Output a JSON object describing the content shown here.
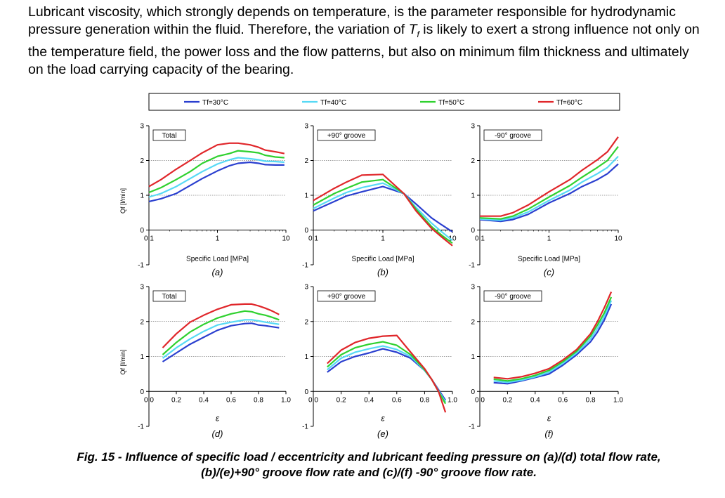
{
  "paragraph": {
    "part1": "Lubricant viscosity, which strongly depends on temperature, is the parameter responsible for hydrodynamic pressure generation within the fluid. Therefore, the variation of ",
    "symbol": "T",
    "subscript": "f",
    "part2": " is likely to exert a strong influence not only on the temperature field, the power loss and the flow patterns, but also on minimum film thickness and ultimately on the load carrying capacity of the bearing."
  },
  "legend": [
    {
      "label": "Tf=30°C",
      "color": "#2a3fcf"
    },
    {
      "label": "Tf=40°C",
      "color": "#56d9f5"
    },
    {
      "label": "Tf=50°C",
      "color": "#2fd12f"
    },
    {
      "label": "Tf=60°C",
      "color": "#e0262a"
    }
  ],
  "caption": {
    "line1": "Fig. 15 - Influence of specific load / eccentricity and lubricant feeding pressure on (a)/(d) total flow rate,",
    "line2": "(b)/(e)+90° groove flow rate and (c)/(f) -90° groove flow rate."
  },
  "chart_data": [
    {
      "panel": "(a)",
      "type": "line",
      "title": "Total",
      "xlabel": "Specific Load [MPa]",
      "ylabel": "Qf [l/min]",
      "xscale": "log",
      "xlim": [
        0.1,
        10
      ],
      "ylim": [
        -1,
        3
      ],
      "xticks": [
        "0.1",
        "1",
        "10"
      ],
      "yticks": [
        "-1",
        "0",
        "1",
        "2",
        "3"
      ],
      "x": [
        0.1,
        0.15,
        0.25,
        0.4,
        0.6,
        1,
        1.5,
        2,
        3,
        4,
        5,
        7,
        9.5
      ],
      "series": [
        {
          "name": "Tf=30°C",
          "values": [
            0.82,
            0.9,
            1.05,
            1.28,
            1.48,
            1.7,
            1.85,
            1.92,
            1.95,
            1.92,
            1.88,
            1.87,
            1.87
          ]
        },
        {
          "name": "Tf=40°C",
          "values": [
            0.95,
            1.05,
            1.25,
            1.48,
            1.68,
            1.9,
            2.02,
            2.08,
            2.05,
            2.02,
            1.98,
            1.97,
            1.95
          ]
        },
        {
          "name": "Tf=50°C",
          "values": [
            1.08,
            1.22,
            1.45,
            1.68,
            1.92,
            2.12,
            2.2,
            2.28,
            2.25,
            2.22,
            2.15,
            2.1,
            2.08
          ]
        },
        {
          "name": "Tf=60°C",
          "values": [
            1.25,
            1.45,
            1.75,
            2.0,
            2.22,
            2.45,
            2.5,
            2.5,
            2.45,
            2.38,
            2.3,
            2.25,
            2.2
          ]
        }
      ]
    },
    {
      "panel": "(b)",
      "type": "line",
      "title": "+90° groove",
      "xlabel": "Specific Load [MPa]",
      "ylabel": "",
      "xscale": "log",
      "xlim": [
        0.1,
        10
      ],
      "ylim": [
        -1,
        3
      ],
      "xticks": [
        "0.1",
        "1",
        "10"
      ],
      "yticks": [
        "-1",
        "0",
        "1",
        "2",
        "3"
      ],
      "x": [
        0.1,
        0.2,
        0.3,
        0.5,
        1,
        2,
        3,
        5,
        7,
        10
      ],
      "series": [
        {
          "name": "Tf=30°C",
          "values": [
            0.55,
            0.82,
            0.98,
            1.1,
            1.25,
            1.05,
            0.75,
            0.35,
            0.15,
            -0.05
          ]
        },
        {
          "name": "Tf=40°C",
          "values": [
            0.62,
            0.92,
            1.08,
            1.22,
            1.35,
            1.05,
            0.65,
            0.2,
            -0.05,
            -0.3
          ]
        },
        {
          "name": "Tf=50°C",
          "values": [
            0.72,
            1.05,
            1.2,
            1.38,
            1.45,
            1.05,
            0.6,
            0.1,
            -0.15,
            -0.38
          ]
        },
        {
          "name": "Tf=60°C",
          "values": [
            0.85,
            1.2,
            1.38,
            1.58,
            1.6,
            1.05,
            0.55,
            0.05,
            -0.2,
            -0.45
          ]
        }
      ]
    },
    {
      "panel": "(c)",
      "type": "line",
      "title": "-90° groove",
      "xlabel": "Specific Load [MPa]",
      "ylabel": "",
      "xscale": "log",
      "xlim": [
        0.1,
        10
      ],
      "ylim": [
        -1,
        3
      ],
      "xticks": [
        "0.1",
        "1",
        "10"
      ],
      "yticks": [
        "-1",
        "0",
        "1",
        "2",
        "3"
      ],
      "x": [
        0.1,
        0.2,
        0.3,
        0.5,
        1,
        2,
        3,
        5,
        7,
        10
      ],
      "series": [
        {
          "name": "Tf=30°C",
          "values": [
            0.3,
            0.25,
            0.3,
            0.45,
            0.78,
            1.05,
            1.25,
            1.45,
            1.62,
            1.9
          ]
        },
        {
          "name": "Tf=40°C",
          "values": [
            0.32,
            0.28,
            0.35,
            0.52,
            0.85,
            1.15,
            1.38,
            1.62,
            1.8,
            2.12
          ]
        },
        {
          "name": "Tf=50°C",
          "values": [
            0.35,
            0.32,
            0.4,
            0.6,
            0.95,
            1.28,
            1.52,
            1.8,
            2.0,
            2.4
          ]
        },
        {
          "name": "Tf=60°C",
          "values": [
            0.4,
            0.4,
            0.5,
            0.72,
            1.1,
            1.45,
            1.72,
            2.02,
            2.25,
            2.68
          ]
        }
      ]
    },
    {
      "panel": "(d)",
      "type": "line",
      "title": "Total",
      "xlabel": "ε",
      "ylabel": "Qf [l/min]",
      "xscale": "linear",
      "xlim": [
        0,
        1
      ],
      "ylim": [
        -1,
        3
      ],
      "xticks": [
        "0.0",
        "0.2",
        "0.4",
        "0.6",
        "0.8",
        "1.0"
      ],
      "yticks": [
        "-1",
        "0",
        "1",
        "2",
        "3"
      ],
      "x": [
        0.1,
        0.2,
        0.3,
        0.4,
        0.5,
        0.6,
        0.7,
        0.75,
        0.8,
        0.85,
        0.9,
        0.95
      ],
      "series": [
        {
          "name": "Tf=30°C",
          "values": [
            0.85,
            1.1,
            1.35,
            1.55,
            1.75,
            1.88,
            1.94,
            1.95,
            1.9,
            1.88,
            1.85,
            1.82
          ]
        },
        {
          "name": "Tf=40°C",
          "values": [
            0.95,
            1.25,
            1.5,
            1.72,
            1.9,
            1.98,
            2.05,
            2.05,
            2.02,
            1.98,
            1.95,
            1.92
          ]
        },
        {
          "name": "Tf=50°C",
          "values": [
            1.05,
            1.4,
            1.7,
            1.92,
            2.1,
            2.22,
            2.3,
            2.28,
            2.22,
            2.18,
            2.12,
            2.05
          ]
        },
        {
          "name": "Tf=60°C",
          "values": [
            1.25,
            1.65,
            1.98,
            2.18,
            2.35,
            2.48,
            2.5,
            2.5,
            2.45,
            2.38,
            2.3,
            2.2
          ]
        }
      ]
    },
    {
      "panel": "(e)",
      "type": "line",
      "title": "+90° groove",
      "xlabel": "ε",
      "ylabel": "",
      "xscale": "linear",
      "xlim": [
        0,
        1
      ],
      "ylim": [
        -1,
        3
      ],
      "xticks": [
        "0.0",
        "0.2",
        "0.4",
        "0.6",
        "0.8",
        "1.0"
      ],
      "yticks": [
        "-1",
        "0",
        "1",
        "2",
        "3"
      ],
      "x": [
        0.1,
        0.2,
        0.3,
        0.4,
        0.5,
        0.6,
        0.7,
        0.8,
        0.85,
        0.9,
        0.95
      ],
      "series": [
        {
          "name": "Tf=30°C",
          "values": [
            0.55,
            0.85,
            1.0,
            1.1,
            1.22,
            1.12,
            0.95,
            0.6,
            0.35,
            0.05,
            -0.25
          ]
        },
        {
          "name": "Tf=40°C",
          "values": [
            0.62,
            0.95,
            1.12,
            1.22,
            1.3,
            1.2,
            1.0,
            0.6,
            0.35,
            0.02,
            -0.3
          ]
        },
        {
          "name": "Tf=50°C",
          "values": [
            0.7,
            1.05,
            1.25,
            1.35,
            1.42,
            1.32,
            1.05,
            0.62,
            0.35,
            0.0,
            -0.35
          ]
        },
        {
          "name": "Tf=60°C",
          "values": [
            0.8,
            1.18,
            1.4,
            1.52,
            1.58,
            1.6,
            1.12,
            0.65,
            0.35,
            0.0,
            -0.6
          ]
        }
      ]
    },
    {
      "panel": "(f)",
      "type": "line",
      "title": "-90° groove",
      "xlabel": "ε",
      "ylabel": "",
      "xscale": "linear",
      "xlim": [
        0,
        1
      ],
      "ylim": [
        -1,
        3
      ],
      "xticks": [
        "0.0",
        "0.2",
        "0.4",
        "0.6",
        "0.8",
        "1.0"
      ],
      "yticks": [
        "-1",
        "0",
        "1",
        "2",
        "3"
      ],
      "x": [
        0.1,
        0.2,
        0.3,
        0.4,
        0.5,
        0.6,
        0.7,
        0.8,
        0.85,
        0.9,
        0.95
      ],
      "series": [
        {
          "name": "Tf=30°C",
          "values": [
            0.25,
            0.22,
            0.3,
            0.4,
            0.5,
            0.75,
            1.05,
            1.42,
            1.7,
            2.05,
            2.5
          ]
        },
        {
          "name": "Tf=40°C",
          "values": [
            0.3,
            0.26,
            0.32,
            0.42,
            0.55,
            0.8,
            1.1,
            1.5,
            1.8,
            2.15,
            2.6
          ]
        },
        {
          "name": "Tf=50°C",
          "values": [
            0.35,
            0.3,
            0.36,
            0.46,
            0.6,
            0.85,
            1.15,
            1.58,
            1.9,
            2.25,
            2.7
          ]
        },
        {
          "name": "Tf=60°C",
          "values": [
            0.4,
            0.36,
            0.42,
            0.52,
            0.65,
            0.9,
            1.2,
            1.65,
            2.0,
            2.4,
            2.85
          ]
        }
      ]
    }
  ]
}
